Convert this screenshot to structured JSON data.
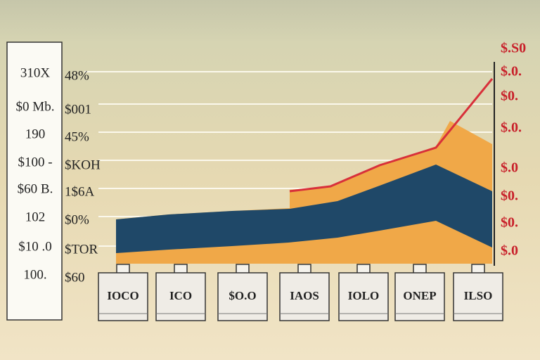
{
  "left_labels": [
    "310X",
    "$0 Mb.",
    "190",
    "$100 -",
    "$60 B.",
    "102",
    "$10 .0",
    "100."
  ],
  "middle_labels": [
    "48%",
    "$001",
    "45%",
    "$KOH",
    "1$6A",
    "$0%",
    "$TOR",
    "$60"
  ],
  "right_labels": [
    "$.S0",
    "$.0.",
    "$0.",
    "$.0.",
    "$.0",
    "$0.",
    "$0.",
    "$.0"
  ],
  "box_labels": [
    "IOCO",
    "ICO",
    "$O.O",
    "IAOS",
    "IOLO",
    "ONEP",
    "ILSO"
  ]
}
